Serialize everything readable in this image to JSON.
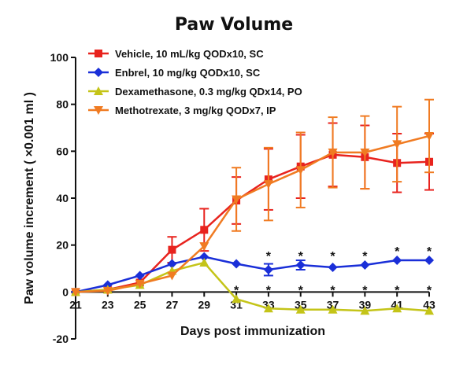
{
  "chart_data": {
    "type": "line",
    "title": "Paw Volume",
    "xlabel": "Days post immunization",
    "ylabel": "Paw volume increment ( ×0.001 ml )",
    "x": [
      21,
      23,
      25,
      27,
      29,
      31,
      33,
      35,
      37,
      39,
      41,
      43
    ],
    "xticks": [
      21,
      23,
      25,
      27,
      29,
      31,
      33,
      35,
      37,
      39,
      41,
      43
    ],
    "xlim": [
      21,
      43
    ],
    "ylim": [
      -20,
      100
    ],
    "yticks": [
      -20,
      0,
      20,
      40,
      60,
      80,
      100
    ],
    "legend_position": "top-left",
    "grid": false,
    "series": [
      {
        "name": "Vehicle, 10 mL/kg QODx10, SC",
        "color": "#e8231e",
        "marker": "square",
        "values": [
          0,
          1,
          4,
          18,
          26.5,
          39,
          48,
          53.5,
          58.5,
          57.5,
          55,
          55.5
        ],
        "errors": [
          0,
          0,
          0,
          5.5,
          9,
          10,
          13,
          13.5,
          13.5,
          13.5,
          12.5,
          12
        ]
      },
      {
        "name": "Enbrel, 10 mg/kg QODx10, SC",
        "color": "#1a2fd8",
        "marker": "diamond",
        "values": [
          0,
          3,
          7,
          12,
          15,
          12,
          9.5,
          11.5,
          10.5,
          11.5,
          13.5,
          13.5
        ],
        "errors": [
          0,
          0,
          0,
          0,
          0,
          0,
          2.5,
          2,
          0,
          0,
          0,
          0
        ]
      },
      {
        "name": "Dexamethasone, 0.3 mg/kg QDx14, PO",
        "color": "#c4c418",
        "marker": "triangle-up",
        "values": [
          0,
          1,
          3,
          9,
          12.5,
          -3,
          -7,
          -7.5,
          -7.5,
          -8,
          -7,
          -8
        ],
        "errors": [
          0,
          0,
          0,
          0,
          0,
          0,
          0,
          0,
          0,
          0,
          0,
          0
        ]
      },
      {
        "name": "Methotrexate, 3 mg/kg QODx7, IP",
        "color": "#f07b22",
        "marker": "triangle-down",
        "values": [
          0,
          0.5,
          3.5,
          7,
          19.5,
          39.5,
          46,
          52,
          59.5,
          59.5,
          63,
          66.5
        ],
        "errors": [
          0,
          0,
          0,
          0,
          0,
          13.5,
          15.5,
          16,
          15,
          15.5,
          16,
          15.5
        ]
      }
    ],
    "annotations": [
      {
        "text": "*",
        "x": 33,
        "y": 15.5,
        "series": "Enbrel, 10 mg/kg QODx10, SC"
      },
      {
        "text": "*",
        "x": 35,
        "y": 15.5,
        "series": "Enbrel, 10 mg/kg QODx10, SC"
      },
      {
        "text": "*",
        "x": 37,
        "y": 15.5,
        "series": "Enbrel, 10 mg/kg QODx10, SC"
      },
      {
        "text": "*",
        "x": 39,
        "y": 15.5,
        "series": "Enbrel, 10 mg/kg QODx10, SC"
      },
      {
        "text": "*",
        "x": 41,
        "y": 17.5,
        "series": "Enbrel, 10 mg/kg QODx10, SC"
      },
      {
        "text": "*",
        "x": 43,
        "y": 17.5,
        "series": "Enbrel, 10 mg/kg QODx10, SC"
      },
      {
        "text": "*",
        "x": 31,
        "y": 1,
        "series": "Dexamethasone, 0.3 mg/kg QDx14, PO"
      },
      {
        "text": "*",
        "x": 33,
        "y": 1,
        "series": "Dexamethasone, 0.3 mg/kg QDx14, PO"
      },
      {
        "text": "*",
        "x": 35,
        "y": 1,
        "series": "Dexamethasone, 0.3 mg/kg QDx14, PO"
      },
      {
        "text": "*",
        "x": 37,
        "y": 1,
        "series": "Dexamethasone, 0.3 mg/kg QDx14, PO"
      },
      {
        "text": "*",
        "x": 39,
        "y": 1,
        "series": "Dexamethasone, 0.3 mg/kg QDx14, PO"
      },
      {
        "text": "*",
        "x": 41,
        "y": 1,
        "series": "Dexamethasone, 0.3 mg/kg QDx14, PO"
      },
      {
        "text": "*",
        "x": 43,
        "y": 1,
        "series": "Dexamethasone, 0.3 mg/kg QDx14, PO"
      }
    ]
  }
}
